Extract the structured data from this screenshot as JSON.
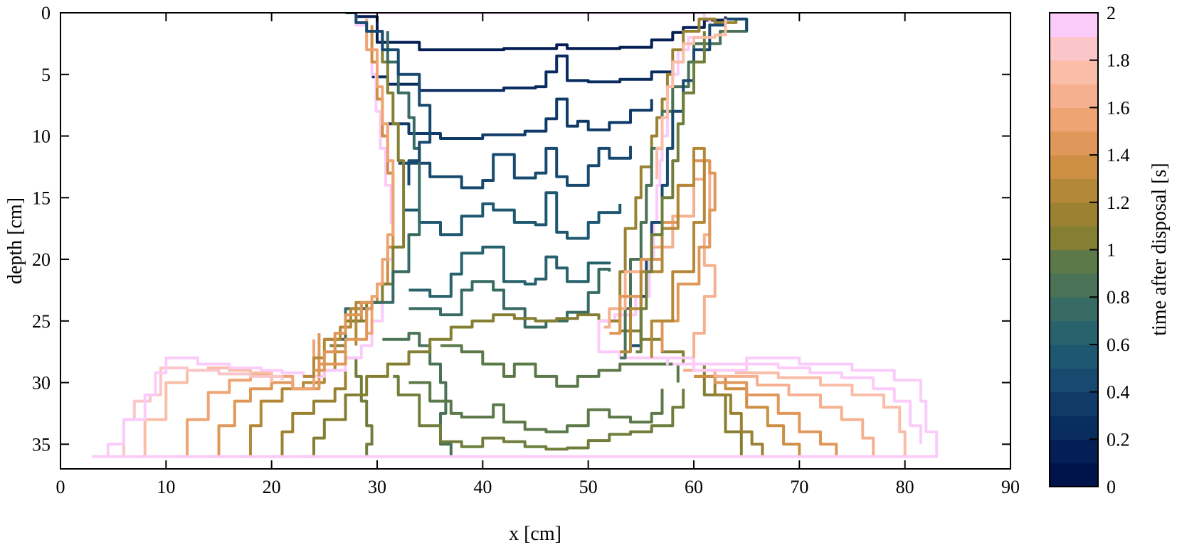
{
  "chart_data": {
    "type": "line",
    "xlabel": "x [cm]",
    "ylabel": "depth [cm]",
    "xlim": [
      0,
      90
    ],
    "ylim": [
      37,
      0
    ],
    "y_axis_reversed": true,
    "xticks": [
      "0",
      "10",
      "20",
      "30",
      "40",
      "50",
      "60",
      "70",
      "80",
      "90"
    ],
    "yticks": [
      "0",
      "5",
      "10",
      "15",
      "20",
      "25",
      "30",
      "35"
    ],
    "grid": false,
    "colorbar": {
      "label": "time after disposal [s]",
      "range": [
        0,
        2
      ],
      "ticks": [
        "0",
        "0.2",
        "0.4",
        "0.6",
        "0.8",
        "1",
        "1.2",
        "1.4",
        "1.6",
        "1.8",
        "2"
      ],
      "levels": 20,
      "colors": [
        "#00134a",
        "#041f55",
        "#0a2d60",
        "#103b68",
        "#174a6e",
        "#1e5870",
        "#28636d",
        "#386b63",
        "#4a7256",
        "#5c7949",
        "#6f7f3b",
        "#847f32",
        "#9a8232",
        "#b38838",
        "#cc8f44",
        "#e0975a",
        "#efa474",
        "#f6b08f",
        "#f9bda8",
        "#fac6c9",
        "#fbccfa"
      ]
    },
    "series": [
      {
        "t": 0.1,
        "x": [
          28,
          30,
          34,
          38,
          42,
          46,
          47,
          48,
          50,
          53,
          56,
          58,
          59,
          61,
          63
        ],
        "y": [
          0.3,
          2.4,
          3.0,
          3.0,
          2.9,
          2.9,
          2.6,
          2.9,
          2.9,
          2.8,
          2.2,
          1.6,
          1.2,
          0.6,
          0.3
        ]
      },
      {
        "t": 0.2,
        "x": [
          29.5,
          31,
          34,
          38,
          42,
          45,
          46,
          47,
          48,
          50,
          53,
          56,
          58
        ],
        "y": [
          5.2,
          5.8,
          6.3,
          6.3,
          6.1,
          6.0,
          4.8,
          3.5,
          5.5,
          5.6,
          5.4,
          4.8,
          4.0
        ]
      },
      {
        "t": 0.3,
        "x": [
          31,
          33,
          36,
          40,
          44,
          46,
          47,
          48,
          49,
          50,
          52,
          54,
          56
        ],
        "y": [
          9.0,
          9.8,
          10.2,
          9.9,
          9.6,
          8.6,
          7.0,
          9.2,
          8.8,
          9.5,
          8.9,
          7.9,
          7.0
        ]
      },
      {
        "t": 0.4,
        "x": [
          32,
          35,
          38,
          40,
          41,
          43,
          45,
          46,
          47,
          48,
          50,
          51,
          52,
          54
        ],
        "y": [
          12.2,
          13.3,
          14.2,
          13.6,
          11.5,
          13.4,
          13.0,
          11.0,
          13.3,
          14.0,
          12.4,
          11.0,
          11.8,
          10.8
        ]
      },
      {
        "t": 0.5,
        "x": [
          32.5,
          34,
          36,
          38,
          40,
          41,
          43,
          45,
          46,
          47,
          48,
          50,
          51,
          53
        ],
        "y": [
          16.0,
          17.0,
          18.0,
          16.5,
          15.5,
          16.0,
          17.0,
          17.2,
          14.6,
          17.8,
          18.3,
          17.0,
          16.2,
          15.5
        ]
      },
      {
        "t": 0.6,
        "x": [
          33,
          35,
          37,
          38,
          40,
          42,
          44,
          45,
          46,
          47,
          48,
          50,
          52
        ],
        "y": [
          22.5,
          23.0,
          21.2,
          19.5,
          19.0,
          21.8,
          22.0,
          21.6,
          19.8,
          20.7,
          21.8,
          20.3,
          20.2
        ]
      },
      {
        "t": 0.7,
        "x": [
          33,
          36,
          38,
          39,
          41,
          42,
          44,
          46,
          48,
          50,
          51,
          52
        ],
        "y": [
          24.0,
          24.5,
          22.5,
          21.8,
          22.5,
          24.0,
          25.5,
          25.0,
          24.3,
          22.7,
          20.8,
          21.0
        ]
      },
      {
        "t": 0.8,
        "x": [
          30.5,
          31,
          33,
          34,
          35,
          36,
          36.5,
          36,
          37
        ],
        "y": [
          26.5,
          26.5,
          26.0,
          27.0,
          28.5,
          30.0,
          32.5,
          35.0,
          36.0
        ]
      },
      {
        "t": 0.85,
        "x": [
          36,
          38,
          40,
          42,
          43,
          45,
          47,
          49,
          51,
          53,
          55,
          57,
          58.5
        ],
        "y": [
          27.0,
          27.5,
          28.5,
          29.5,
          28.5,
          29.5,
          30.3,
          29.5,
          29.0,
          28.5,
          28.5,
          28.5,
          30.0
        ]
      },
      {
        "t": 0.9,
        "x": [
          33,
          35,
          37,
          38,
          40,
          41,
          42,
          44,
          46,
          48,
          50,
          52,
          54,
          56,
          57
        ],
        "y": [
          30.0,
          31.5,
          32.5,
          32.8,
          32.8,
          31.8,
          33.2,
          33.8,
          34.0,
          33.5,
          32.2,
          32.8,
          33.2,
          32.5,
          30.5
        ]
      },
      {
        "t": 0.95,
        "x": [
          31.5,
          32,
          34,
          36,
          38,
          40,
          42,
          44,
          46,
          48,
          50,
          52,
          54,
          56,
          58,
          59
        ],
        "y": [
          29.5,
          31.0,
          33.5,
          34.8,
          35.2,
          34.5,
          34.8,
          35.2,
          35.4,
          35.3,
          34.7,
          34.2,
          34.0,
          33.5,
          32.0,
          30.5
        ]
      },
      {
        "t": 1.0,
        "x": [
          27,
          28,
          28.5,
          29,
          29.5,
          29
        ],
        "y": [
          28.0,
          29.5,
          31.5,
          33.5,
          35.0,
          36.0
        ]
      },
      {
        "t": 1.05,
        "x": [
          23,
          24,
          25,
          27,
          29,
          31,
          33,
          35,
          37,
          39,
          41,
          43,
          45,
          47,
          49,
          51,
          53,
          55,
          57,
          59,
          61,
          63,
          64.5
        ],
        "y": [
          36.0,
          34.5,
          33.0,
          31.0,
          29.5,
          28.5,
          27.5,
          26.5,
          25.5,
          25.0,
          24.5,
          24.8,
          25.0,
          24.8,
          24.5,
          25.0,
          25.8,
          26.5,
          27.5,
          28.5,
          31.0,
          34.0,
          36.0
        ]
      },
      {
        "t": 1.15,
        "x": [
          20,
          21,
          22,
          24,
          26,
          27
        ],
        "y": [
          36.0,
          34.0,
          32.5,
          31.5,
          30.5,
          29.0
        ]
      },
      {
        "t": 1.2,
        "x": [
          60,
          62,
          63.5,
          64.5,
          65.5,
          66.5
        ],
        "y": [
          29.5,
          31.0,
          32.5,
          34.0,
          35.0,
          36.0
        ]
      },
      {
        "t": 1.3,
        "x": [
          17,
          18,
          19,
          21,
          23,
          25,
          26
        ],
        "y": [
          36.0,
          33.5,
          31.5,
          30.5,
          30.0,
          29.0,
          27.0
        ]
      },
      {
        "t": 1.35,
        "x": [
          60,
          63,
          65,
          67,
          68.5,
          70
        ],
        "y": [
          29.5,
          30.5,
          32.0,
          33.5,
          35.0,
          36.0
        ]
      },
      {
        "t": 1.45,
        "x": [
          14,
          15,
          16.5,
          18,
          20,
          22,
          24.5
        ],
        "y": [
          36.0,
          33.5,
          31.5,
          30.5,
          30.0,
          30.5,
          26.0
        ]
      },
      {
        "t": 1.5,
        "x": [
          59,
          62,
          65,
          68,
          70,
          72,
          73.5
        ],
        "y": [
          29.0,
          30.0,
          31.0,
          32.5,
          34.0,
          35.0,
          36.0
        ]
      },
      {
        "t": 1.6,
        "x": [
          11,
          12,
          14,
          16,
          18,
          20,
          22,
          24
        ],
        "y": [
          36.0,
          33.0,
          30.8,
          29.8,
          29.3,
          29.5,
          30.5,
          26.5
        ]
      },
      {
        "t": 1.65,
        "x": [
          59,
          62,
          66,
          69,
          72,
          74,
          76,
          77
        ],
        "y": [
          29.0,
          29.5,
          30.2,
          31.0,
          32.0,
          33.0,
          34.5,
          36.0
        ]
      },
      {
        "t": 1.75,
        "x": [
          7.5,
          8,
          10,
          12,
          14,
          16,
          18,
          20
        ],
        "y": [
          36.0,
          33.0,
          30.0,
          29.0,
          28.8,
          29.0,
          29.2,
          30.0
        ]
      },
      {
        "t": 1.8,
        "x": [
          60,
          64,
          68,
          72,
          75,
          78,
          79.5,
          80
        ],
        "y": [
          29.0,
          29.2,
          29.6,
          30.2,
          31.0,
          32.0,
          34.0,
          36.0
        ]
      },
      {
        "t": 1.9,
        "x": [
          5.5,
          6,
          7,
          8.5,
          9.5,
          12,
          15,
          18,
          21
        ],
        "y": [
          36.0,
          33.0,
          31.5,
          31.0,
          28.8,
          29.0,
          29.3,
          29.5,
          29.8
        ]
      },
      {
        "t": 1.95,
        "x": [
          58,
          60,
          62,
          65,
          68,
          71,
          74,
          77,
          79,
          80.5,
          81.5
        ],
        "y": [
          28.5,
          29.0,
          29.0,
          28.5,
          28.8,
          29.2,
          29.6,
          30.5,
          31.5,
          33.5,
          35.0
        ]
      },
      {
        "t": 2.0,
        "x": [
          3,
          4.5,
          6,
          8,
          9,
          10,
          13,
          16,
          19,
          21,
          23,
          25,
          27,
          28.5,
          29.5,
          30.5,
          30.5,
          31.5,
          31.3,
          30.8,
          30.3,
          29.9,
          29.5,
          29,
          28,
          36,
          44,
          52,
          58,
          61,
          61.5,
          59.5,
          58.5,
          58,
          57.5,
          57,
          56.8,
          56.5,
          56.2,
          55.8,
          54.5,
          52.5,
          51,
          51,
          53,
          56,
          57.5,
          57.5,
          60,
          65,
          70,
          75,
          79,
          81.5,
          82,
          83,
          3
        ],
        "y": [
          36.0,
          35.0,
          33.0,
          31.0,
          29.2,
          28.0,
          28.5,
          28.8,
          29.0,
          29.2,
          29.5,
          29.0,
          28.0,
          27.0,
          25.0,
          23.0,
          20.0,
          17.0,
          14.0,
          11.0,
          8.0,
          5.0,
          3.0,
          1.0,
          0.0,
          0.0,
          0.0,
          0.0,
          0.0,
          0.5,
          2.0,
          3.0,
          5.0,
          8.0,
          10.0,
          12.0,
          14.0,
          17.0,
          20.0,
          23.0,
          24.5,
          25.0,
          26.0,
          27.5,
          28.0,
          28.0,
          28.5,
          28.0,
          28.5,
          28.0,
          28.5,
          29.0,
          29.8,
          31.5,
          34.0,
          36.0,
          36.0
        ]
      },
      {
        "t": 1.4,
        "x": [
          26,
          27,
          28.5,
          30,
          31,
          31.5,
          31.5,
          31,
          30.5,
          30,
          29.5
        ],
        "y": [
          27.5,
          25.0,
          23.5,
          22.0,
          19.0,
          16.0,
          13.0,
          10.0,
          7.0,
          4.0,
          1.0
        ]
      },
      {
        "t": 1.1,
        "x": [
          25.5,
          27,
          29,
          30.5,
          31.5,
          32.5,
          32.5,
          32,
          31.5,
          31,
          30.5
        ],
        "y": [
          27.0,
          25.0,
          23.5,
          22.0,
          19.0,
          16.0,
          12.0,
          9.0,
          6.5,
          4.0,
          1.5
        ]
      },
      {
        "t": 0.7,
        "x": [
          25,
          27,
          29.5,
          31.5,
          33,
          34,
          34,
          33.5,
          33,
          32,
          31
        ],
        "y": [
          26.5,
          24.0,
          23.5,
          21.0,
          18.0,
          14.5,
          11.0,
          8.5,
          6.5,
          4.0,
          1.5
        ]
      },
      {
        "t": 1.6,
        "x": [
          29,
          29.5,
          30,
          30.5,
          31,
          31.5,
          31.5,
          31,
          30.5,
          30,
          29
        ],
        "y": [
          26.0,
          23.0,
          22.0,
          20.0,
          18.0,
          15.0,
          12.0,
          9.0,
          6.0,
          3.0,
          0.5
        ]
      },
      {
        "t": 0.4,
        "x": [
          27,
          28,
          29,
          30.5,
          32,
          34,
          35,
          35,
          34,
          33
        ],
        "y": [
          0.0,
          0.8,
          1.5,
          3.0,
          5.0,
          7.5,
          9.0,
          10.5,
          12.0,
          14.0
        ]
      },
      {
        "t": 1.2,
        "x": [
          52,
          53,
          53.5,
          54.5,
          55,
          56,
          56.5,
          57,
          57.5,
          58,
          59,
          60.5,
          62,
          64
        ],
        "y": [
          25.0,
          21.0,
          17.5,
          15.0,
          12.5,
          10.0,
          8.5,
          7.0,
          5.0,
          3.0,
          1.5,
          0.5,
          0.8,
          0.5
        ]
      },
      {
        "t": 0.8,
        "x": [
          53,
          53.5,
          54,
          55,
          55.5,
          56,
          57,
          58,
          59.5,
          60,
          62.5,
          65
        ],
        "y": [
          28.0,
          24.0,
          20.0,
          17.0,
          14.0,
          11.0,
          8.0,
          6.0,
          4.0,
          2.5,
          1.5,
          0.5
        ]
      },
      {
        "t": 0.4,
        "x": [
          54,
          55,
          55.5,
          56,
          57,
          57.5,
          58,
          59,
          60,
          61.5,
          63,
          65
        ],
        "y": [
          27.0,
          23.0,
          20.0,
          17.0,
          14.0,
          11.0,
          8.0,
          5.5,
          3.0,
          1.0,
          0.5,
          1.5
        ]
      },
      {
        "t": 1.7,
        "x": [
          51.5,
          52,
          53.5,
          56,
          58,
          60,
          61,
          61.5,
          61.5,
          61,
          62,
          61,
          60
        ],
        "y": [
          25.5,
          24.0,
          21.0,
          19.0,
          16.5,
          13.5,
          12.0,
          14.5,
          18.0,
          20.5,
          23.0,
          26.0,
          28.0
        ]
      },
      {
        "t": 1.5,
        "x": [
          52,
          53,
          55,
          57,
          58.5,
          60,
          61.5,
          62,
          61.5,
          60.5,
          58.5,
          57
        ],
        "y": [
          26.0,
          23.0,
          20.0,
          17.0,
          14.0,
          12.0,
          13.0,
          16.0,
          19.0,
          22.0,
          25.0,
          27.5
        ]
      },
      {
        "t": 1.3,
        "x": [
          53,
          54,
          55,
          57,
          58.5,
          60,
          61,
          61,
          60,
          58,
          56
        ],
        "y": [
          27.5,
          24.0,
          21.0,
          17.5,
          14.0,
          11.0,
          13.0,
          17.0,
          21.0,
          25.0,
          28.0
        ]
      },
      {
        "t": 1.0,
        "x": [
          54.5,
          55,
          55.5,
          56,
          57,
          58,
          58.5,
          59,
          60,
          61
        ],
        "y": [
          27.5,
          24.0,
          21.0,
          18.0,
          15.0,
          12.0,
          9.0,
          6.5,
          4.0,
          1.5
        ]
      },
      {
        "t": 1.8,
        "x": [
          56.5,
          56.5,
          57,
          57.5,
          58,
          59,
          60,
          62,
          63
        ],
        "y": [
          13.5,
          11.0,
          8.5,
          6.0,
          4.0,
          2.5,
          2.0,
          1.8,
          0.5
        ]
      },
      {
        "t": 1.25,
        "x": [
          23,
          24,
          25,
          26.5,
          27.5,
          28.5,
          28
        ],
        "y": [
          29.5,
          28.0,
          26.5,
          25.5,
          24.0,
          23.5,
          27.0
        ]
      },
      {
        "t": 1.45,
        "x": [
          24,
          25,
          26,
          27,
          28.5,
          29.5,
          29,
          27,
          24.5
        ],
        "y": [
          29.0,
          27.5,
          26.0,
          24.5,
          23.5,
          24.0,
          26.5,
          28.5,
          29.5
        ]
      }
    ]
  }
}
